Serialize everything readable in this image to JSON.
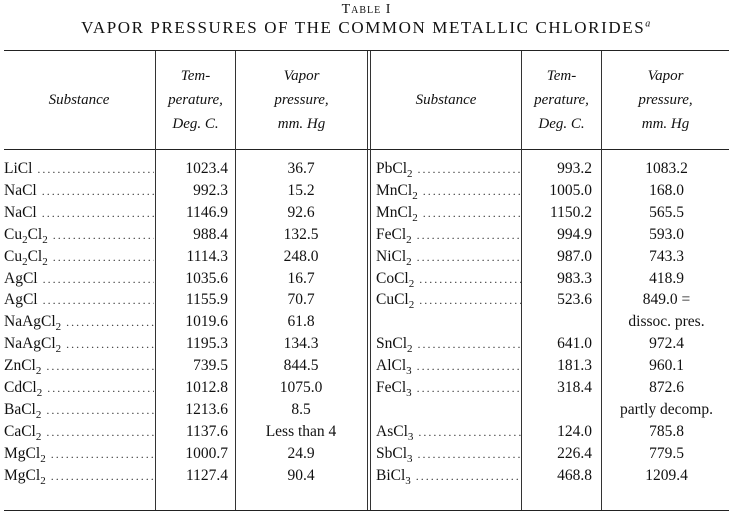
{
  "caption": {
    "label": "Table I",
    "title": "VAPOR PRESSURES OF THE COMMON METALLIC CHLORIDES",
    "footnote_mark": "a"
  },
  "headers": {
    "substance": "Substance",
    "temperature": [
      "Tem-",
      "perature,",
      "Deg. C."
    ],
    "pressure": [
      "Vapor",
      "pressure,",
      "mm. Hg"
    ]
  },
  "left_rows": [
    {
      "formula": "LiCl",
      "temp": "1023.4",
      "pressure": "36.7"
    },
    {
      "formula": "NaCl",
      "temp": "992.3",
      "pressure": "15.2"
    },
    {
      "formula": "NaCl",
      "temp": "1146.9",
      "pressure": "92.6"
    },
    {
      "formula": "Cu2Cl2",
      "temp": "988.4",
      "pressure": "132.5"
    },
    {
      "formula": "Cu2Cl2",
      "temp": "1114.3",
      "pressure": "248.0"
    },
    {
      "formula": "AgCl",
      "temp": "1035.6",
      "pressure": "16.7"
    },
    {
      "formula": "AgCl",
      "temp": "1155.9",
      "pressure": "70.7"
    },
    {
      "formula": "NaAgCl2",
      "temp": "1019.6",
      "pressure": "61.8"
    },
    {
      "formula": "NaAgCl2",
      "temp": "1195.3",
      "pressure": "134.3"
    },
    {
      "formula": "ZnCl2",
      "temp": "739.5",
      "pressure": "844.5"
    },
    {
      "formula": "CdCl2",
      "temp": "1012.8",
      "pressure": "1075.0"
    },
    {
      "formula": "BaCl2",
      "temp": "1213.6",
      "pressure": "8.5"
    },
    {
      "formula": "CaCl2",
      "temp": "1137.6",
      "pressure": "Less than 4"
    },
    {
      "formula": "MgCl2",
      "temp": "1000.7",
      "pressure": "24.9"
    },
    {
      "formula": "MgCl2",
      "temp": "1127.4",
      "pressure": "90.4"
    }
  ],
  "right_rows": [
    {
      "formula": "PbCl2",
      "temp": "993.2",
      "pressure": "1083.2"
    },
    {
      "formula": "MnCl2",
      "temp": "1005.0",
      "pressure": "168.0"
    },
    {
      "formula": "MnCl2",
      "temp": "1150.2",
      "pressure": "565.5"
    },
    {
      "formula": "FeCl2",
      "temp": "994.9",
      "pressure": "593.0"
    },
    {
      "formula": "NiCl2",
      "temp": "987.0",
      "pressure": "743.3"
    },
    {
      "formula": "CoCl2",
      "temp": "983.3",
      "pressure": "418.9"
    },
    {
      "formula": "CuCl2",
      "temp": "523.6",
      "pressure": "849.0 ="
    },
    {
      "formula": "",
      "temp": "",
      "pressure": "dissoc. pres."
    },
    {
      "formula": "SnCl2",
      "temp": "641.0",
      "pressure": "972.4"
    },
    {
      "formula": "AlCl3",
      "temp": "181.3",
      "pressure": "960.1"
    },
    {
      "formula": "FeCl3",
      "temp": "318.4",
      "pressure": "872.6"
    },
    {
      "formula": "",
      "temp": "",
      "pressure": "partly decomp."
    },
    {
      "formula": "AsCl3",
      "temp": "124.0",
      "pressure": "785.8"
    },
    {
      "formula": "SbCl3",
      "temp": "226.4",
      "pressure": "779.5"
    },
    {
      "formula": "BiCl3",
      "temp": "468.8",
      "pressure": "1209.4"
    }
  ]
}
